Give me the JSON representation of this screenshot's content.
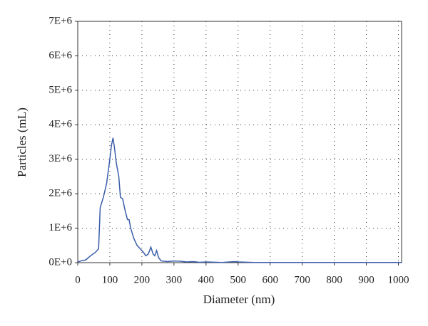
{
  "chart_data": {
    "type": "line",
    "x_label": "Diameter (nm)",
    "y_label": "Particles (mL)",
    "x": [
      0,
      10,
      25,
      40,
      55,
      65,
      70,
      80,
      90,
      100,
      105,
      110,
      115,
      120,
      128,
      133,
      140,
      148,
      155,
      160,
      165,
      175,
      185,
      195,
      205,
      212,
      220,
      228,
      235,
      240,
      246,
      252,
      260,
      280,
      300,
      320,
      340,
      360,
      380,
      400,
      450,
      490,
      500,
      550,
      600,
      700,
      800,
      900,
      1000,
      1010
    ],
    "series": [
      {
        "name": "Particles",
        "color": "#3a5daa",
        "values": [
          20000,
          50000,
          80000,
          200000,
          300000,
          400000,
          1600000,
          1900000,
          2300000,
          3000000,
          3400000,
          3620000,
          3300000,
          2900000,
          2500000,
          1900000,
          1850000,
          1500000,
          1250000,
          1250000,
          1000000,
          700000,
          500000,
          400000,
          300000,
          200000,
          250000,
          450000,
          250000,
          200000,
          350000,
          150000,
          50000,
          30000,
          50000,
          40000,
          20000,
          30000,
          10000,
          20000,
          5000,
          30000,
          20000,
          5000,
          5000,
          5000,
          5000,
          5000,
          5000,
          5000
        ]
      }
    ],
    "xlim": [
      0,
      1010
    ],
    "ylim": [
      0,
      7000000
    ],
    "xticks": [
      0,
      100,
      200,
      300,
      400,
      500,
      600,
      700,
      800,
      900,
      1000
    ],
    "yticks": [
      {
        "value": 0,
        "label": "0E+0"
      },
      {
        "value": 1000000,
        "label": "1E+6"
      },
      {
        "value": 2000000,
        "label": "2E+6"
      },
      {
        "value": 3000000,
        "label": "3E+6"
      },
      {
        "value": 4000000,
        "label": "4E+6"
      },
      {
        "value": 5000000,
        "label": "5E+6"
      },
      {
        "value": 6000000,
        "label": "6E+6"
      },
      {
        "value": 7000000,
        "label": "7E+6"
      }
    ],
    "grid": true
  }
}
